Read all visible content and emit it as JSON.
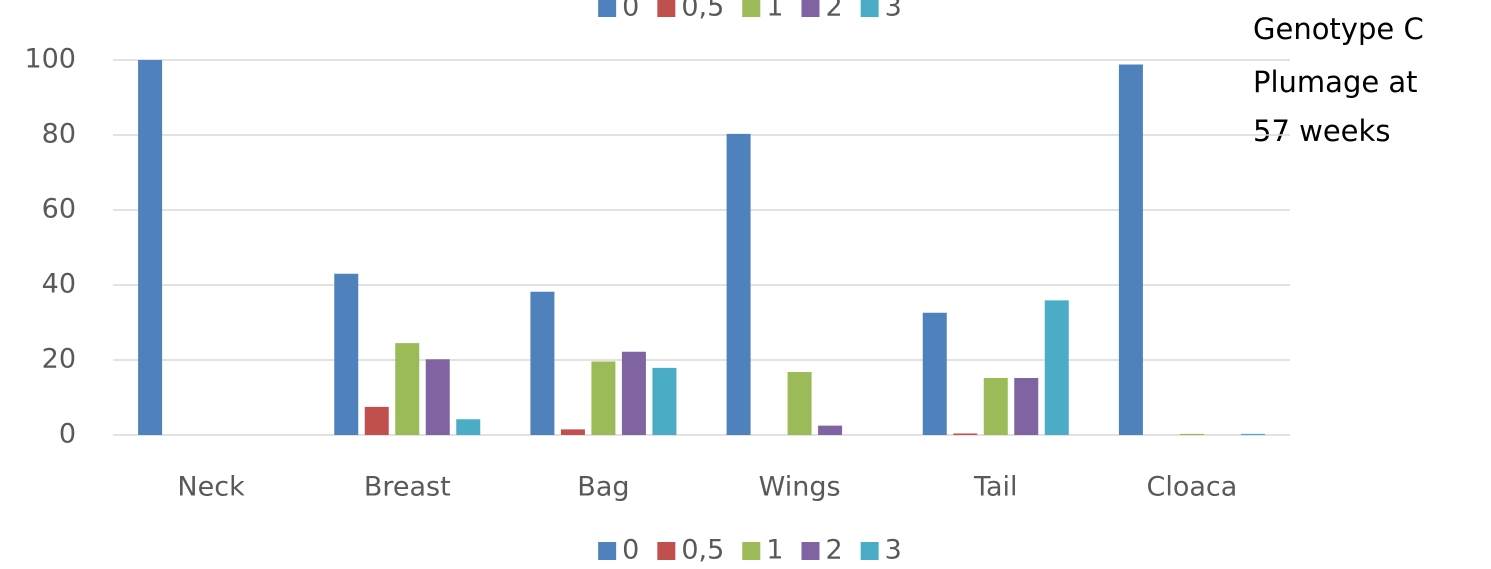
{
  "chart_data": {
    "type": "bar",
    "title": [
      "Genotype C",
      "Plumage at",
      "57 weeks"
    ],
    "categories": [
      "Neck",
      "Breast",
      "Bag",
      "Wings",
      "Tail",
      "Cloaca"
    ],
    "series": [
      {
        "name": "0",
        "color": "#4f81bd",
        "values": [
          100,
          43,
          38.2,
          80.3,
          32.6,
          98.8
        ]
      },
      {
        "name": "0,5",
        "color": "#c0504d",
        "values": [
          0,
          7.5,
          1.5,
          0,
          0.4,
          0
        ]
      },
      {
        "name": "1",
        "color": "#9bbb59",
        "values": [
          0,
          24.5,
          19.6,
          16.8,
          15.2,
          0.3
        ]
      },
      {
        "name": "2",
        "color": "#8064a2",
        "values": [
          0,
          20.2,
          22.2,
          2.5,
          15.2,
          0
        ]
      },
      {
        "name": "3",
        "color": "#4bacc6",
        "values": [
          0,
          4.2,
          17.9,
          0,
          35.9,
          0.3
        ]
      }
    ],
    "ylim": [
      0,
      100
    ],
    "yticks": [
      0,
      20,
      40,
      60,
      80,
      100
    ],
    "grid": true
  }
}
